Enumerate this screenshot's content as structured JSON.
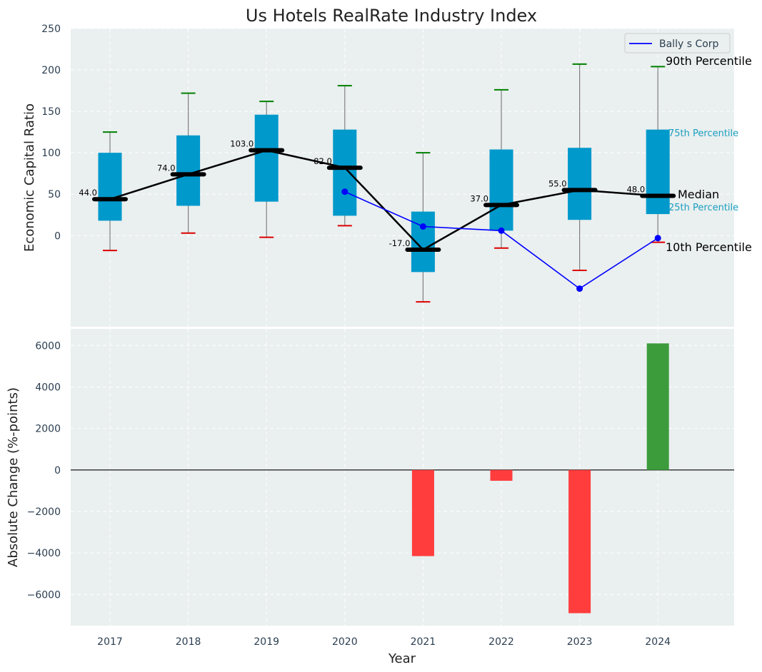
{
  "chart_data": [
    {
      "type": "box",
      "title": "Us Hotels RealRate Industry Index",
      "ylabel": "Economic Capital Ratio",
      "ylim": [
        -110,
        250
      ],
      "yticks": [
        0,
        50,
        100,
        150,
        200,
        250
      ],
      "categories": [
        "2017",
        "2018",
        "2019",
        "2020",
        "2021",
        "2022",
        "2023",
        "2024"
      ],
      "p10": [
        -18,
        3,
        -2,
        12,
        -80,
        -15,
        -42,
        -8
      ],
      "p25": [
        18,
        36,
        41,
        24,
        -44,
        6,
        19,
        26
      ],
      "median": [
        44,
        74,
        103,
        82,
        -17,
        37,
        55,
        48
      ],
      "p75": [
        100,
        121,
        146,
        128,
        29,
        104,
        106,
        128
      ],
      "p90": [
        125,
        172,
        162,
        181,
        100,
        176,
        207,
        204
      ],
      "median_labels": [
        "44.0",
        "74.0",
        "103.0",
        "82.0",
        "-17.0",
        "37.0",
        "55.0",
        "48.0"
      ],
      "company": {
        "name": "Bally s Corp",
        "x": [
          "2020",
          "2021",
          "2022",
          "2023",
          "2024"
        ],
        "values": [
          53,
          11,
          6,
          -64,
          -3
        ]
      },
      "annotations": {
        "p90": "90th Percentile",
        "p75": "75th Percentile",
        "median": "Median",
        "p25": "25th Percentile",
        "p10": "10th Percentile"
      },
      "colors": {
        "box": "#0099cc",
        "median_line": "#000000",
        "company": "#0000ff",
        "p90_cap": "#008000",
        "p10_cap": "#dd0000",
        "whisker": "#808080",
        "background": "#eaefef"
      },
      "legend": "top-right"
    },
    {
      "type": "bar",
      "ylabel": "Absolute Change (%-points)",
      "xlabel": "Year",
      "ylim": [
        -7500,
        6800
      ],
      "yticks": [
        -6000,
        -4000,
        -2000,
        0,
        2000,
        4000,
        6000
      ],
      "ytick_labels": [
        "−6000",
        "−4000",
        "−2000",
        "0",
        "2000",
        "4000",
        "6000"
      ],
      "categories": [
        "2017",
        "2018",
        "2019",
        "2020",
        "2021",
        "2022",
        "2023",
        "2024"
      ],
      "values": [
        0,
        0,
        0,
        0,
        -4150,
        -520,
        -6900,
        6100
      ],
      "colors": {
        "negative": "#ff3d3d",
        "positive": "#3c9c3c"
      }
    }
  ]
}
